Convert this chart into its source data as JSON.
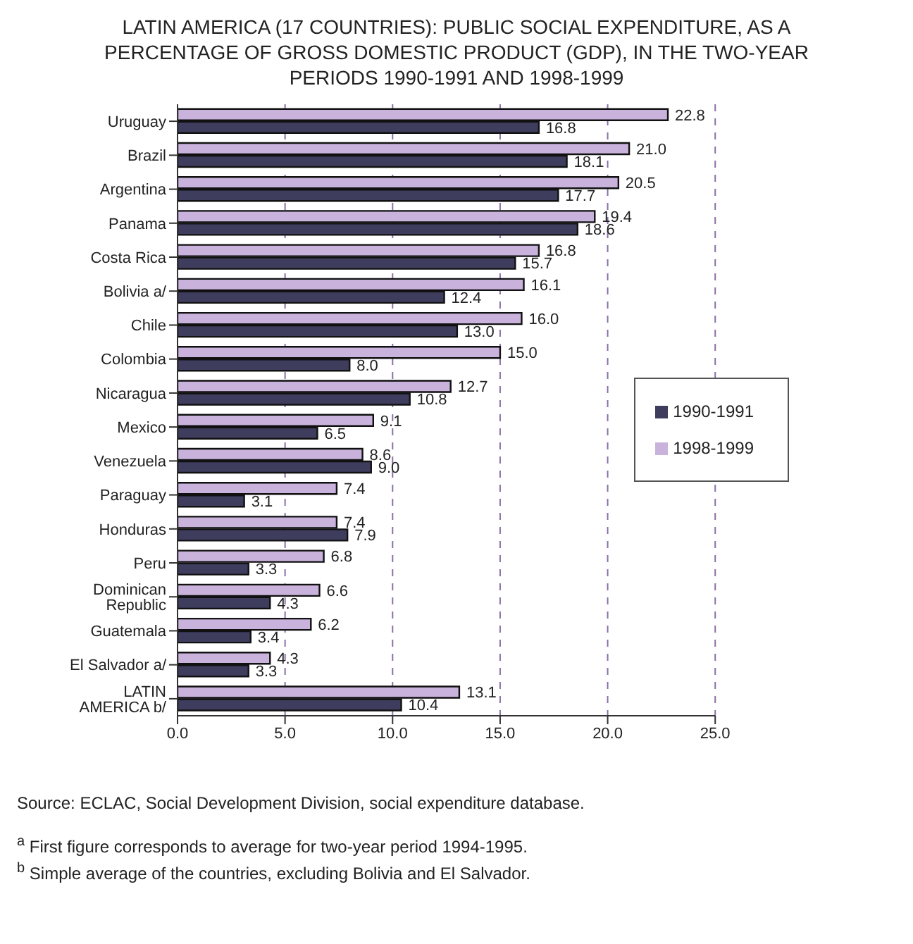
{
  "chart_data": {
    "type": "bar",
    "orientation": "horizontal",
    "title": "LATIN AMERICA (17 COUNTRIES): PUBLIC SOCIAL EXPENDITURE, AS A PERCENTAGE OF GROSS DOMESTIC PRODUCT (GDP), IN THE TWO-YEAR PERIODS 1990-1991 AND 1998-1999",
    "categories": [
      "Uruguay",
      "Brazil",
      "Argentina",
      "Panama",
      "Costa Rica",
      "Bolivia a/",
      "Chile",
      "Colombia",
      "Nicaragua",
      "Mexico",
      "Venezuela",
      "Paraguay",
      "Honduras",
      "Peru",
      "Dominican Republic",
      "Guatemala",
      "El Salvador a/",
      "LATIN AMERICA b/"
    ],
    "series": [
      {
        "name": "1998-1999",
        "color": "#c9b3dc",
        "values": [
          22.8,
          21.0,
          20.5,
          19.4,
          16.8,
          16.1,
          16.0,
          15.0,
          12.7,
          9.1,
          8.6,
          7.4,
          7.4,
          6.8,
          6.6,
          6.2,
          4.3,
          13.1
        ],
        "value_labels": [
          "22.8",
          "21.0",
          "20.5",
          "19.4",
          "16.8",
          "16.1",
          "16.0",
          "15.0",
          "12.7",
          "9.1",
          "8.6",
          "7.4",
          "7.4",
          "6.8",
          "6.6",
          "6.2",
          "4.3",
          "13.1"
        ]
      },
      {
        "name": "1990-1991",
        "color": "#3e3d5e",
        "values": [
          16.8,
          18.1,
          17.7,
          18.6,
          15.7,
          12.4,
          13.0,
          8.0,
          10.8,
          6.5,
          9.0,
          3.1,
          7.9,
          3.3,
          4.3,
          3.4,
          3.3,
          10.4
        ],
        "value_labels": [
          "16.8",
          "18.1",
          "17.7",
          "18.6",
          "15.7",
          "12.4",
          "13.0",
          "8.0",
          "10.8",
          "6.5",
          "9.0",
          "3.1",
          "7.9",
          "3.3",
          "4.3",
          "3.4",
          "3.3",
          "10.4"
        ]
      }
    ],
    "xlim": [
      0,
      25
    ],
    "xticks": [
      {
        "value": 0,
        "label": "0.0"
      },
      {
        "value": 5,
        "label": "5.0"
      },
      {
        "value": 10,
        "label": "10.0"
      },
      {
        "value": 15,
        "label": "15.0"
      },
      {
        "value": 20,
        "label": "20.0"
      },
      {
        "value": 25,
        "label": "25.0"
      }
    ],
    "grid": "x",
    "legend": "right",
    "annotations": [
      "Source: ECLAC, Social Development Division, social expenditure database.",
      "$^{a}$ First figure corresponds to average for two-year period 1994-1995.",
      "$^{b}$ Simple average of the countries, excluding Bolivia and El Salvador."
    ]
  }
}
